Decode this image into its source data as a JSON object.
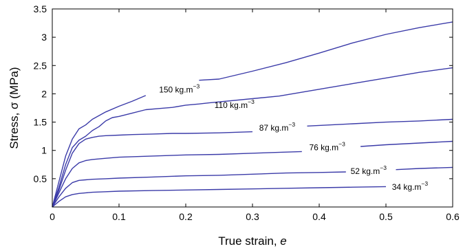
{
  "chart_data": {
    "type": "line",
    "xlabel": "True strain, ",
    "xlabel_var": "e",
    "ylabel": "Stress, σ (MPa)",
    "xlim": [
      0,
      0.6
    ],
    "ylim": [
      0,
      3.5
    ],
    "xticks": [
      "0",
      "0.1",
      "0.2",
      "0.3",
      "0.4",
      "0.5",
      "0.6"
    ],
    "yticks": [
      "0.5",
      "1",
      "1.5",
      "2",
      "2.5",
      "3",
      "3.5"
    ],
    "grid": false,
    "line_color": "#3a3aa8",
    "series": [
      {
        "name": "150 kg.m",
        "name_sup": "−3",
        "label_at": [
          0.16,
          2.07
        ],
        "gap": [
          0.148,
          0.215
        ],
        "x": [
          0,
          0.01,
          0.02,
          0.03,
          0.04,
          0.05,
          0.06,
          0.08,
          0.1,
          0.12,
          0.14,
          0.16,
          0.2,
          0.22,
          0.25,
          0.3,
          0.35,
          0.4,
          0.45,
          0.5,
          0.55,
          0.6
        ],
        "y": [
          0,
          0.45,
          0.9,
          1.2,
          1.38,
          1.45,
          1.55,
          1.68,
          1.78,
          1.87,
          1.97,
          2.06,
          2.2,
          2.24,
          2.26,
          2.4,
          2.55,
          2.72,
          2.9,
          3.05,
          3.17,
          3.27
        ]
      },
      {
        "name": "110 kg.m",
        "name_sup": "−3",
        "label_at": [
          0.243,
          1.8
        ],
        "gap": [
          0.237,
          0.34
        ],
        "x": [
          0,
          0.01,
          0.02,
          0.03,
          0.04,
          0.05,
          0.06,
          0.07,
          0.08,
          0.09,
          0.1,
          0.12,
          0.14,
          0.16,
          0.18,
          0.2,
          0.22,
          0.235,
          0.34,
          0.4,
          0.45,
          0.5,
          0.55,
          0.6
        ],
        "y": [
          0,
          0.35,
          0.75,
          1.05,
          1.18,
          1.25,
          1.35,
          1.42,
          1.52,
          1.58,
          1.6,
          1.66,
          1.72,
          1.74,
          1.76,
          1.8,
          1.82,
          1.84,
          1.96,
          2.08,
          2.18,
          2.28,
          2.38,
          2.46
        ]
      },
      {
        "name": "87 kg.m",
        "name_sup": "−3",
        "label_at": [
          0.31,
          1.4
        ],
        "gap": [
          0.3,
          0.382
        ],
        "x": [
          0,
          0.01,
          0.02,
          0.03,
          0.04,
          0.05,
          0.06,
          0.07,
          0.08,
          0.1,
          0.12,
          0.15,
          0.18,
          0.2,
          0.25,
          0.3,
          0.382,
          0.45,
          0.5,
          0.55,
          0.6
        ],
        "y": [
          0,
          0.3,
          0.65,
          0.95,
          1.12,
          1.2,
          1.23,
          1.25,
          1.26,
          1.27,
          1.28,
          1.29,
          1.3,
          1.3,
          1.31,
          1.33,
          1.43,
          1.47,
          1.5,
          1.52,
          1.55
        ]
      },
      {
        "name": "76 kg.m",
        "name_sup": "−3",
        "label_at": [
          0.385,
          1.05
        ],
        "gap": [
          0.374,
          0.462
        ],
        "x": [
          0,
          0.01,
          0.02,
          0.03,
          0.04,
          0.05,
          0.06,
          0.08,
          0.1,
          0.15,
          0.2,
          0.25,
          0.3,
          0.35,
          0.374,
          0.462,
          0.5,
          0.55,
          0.6
        ],
        "y": [
          0,
          0.25,
          0.5,
          0.68,
          0.78,
          0.82,
          0.84,
          0.86,
          0.88,
          0.9,
          0.92,
          0.93,
          0.95,
          0.97,
          0.98,
          1.07,
          1.1,
          1.13,
          1.16
        ]
      },
      {
        "name": "52 kg.m",
        "name_sup": "−3",
        "label_at": [
          0.447,
          0.63
        ],
        "gap": [
          0.44,
          0.515
        ],
        "x": [
          0,
          0.01,
          0.02,
          0.03,
          0.04,
          0.05,
          0.06,
          0.08,
          0.1,
          0.15,
          0.2,
          0.25,
          0.3,
          0.35,
          0.4,
          0.44,
          0.515,
          0.55,
          0.6
        ],
        "y": [
          0,
          0.18,
          0.33,
          0.43,
          0.47,
          0.48,
          0.49,
          0.5,
          0.51,
          0.53,
          0.55,
          0.56,
          0.58,
          0.6,
          0.61,
          0.62,
          0.66,
          0.68,
          0.7
        ]
      },
      {
        "name": "34 kg.m",
        "name_sup": "−3",
        "label_at": [
          0.509,
          0.35
        ],
        "gap": [
          0.5,
          0.6
        ],
        "x": [
          0,
          0.01,
          0.02,
          0.03,
          0.04,
          0.05,
          0.06,
          0.08,
          0.1,
          0.15,
          0.2,
          0.25,
          0.3,
          0.35,
          0.4,
          0.45,
          0.5,
          0.6
        ],
        "y": [
          0,
          0.1,
          0.18,
          0.22,
          0.24,
          0.25,
          0.26,
          0.27,
          0.28,
          0.29,
          0.3,
          0.31,
          0.32,
          0.33,
          0.34,
          0.35,
          0.36,
          0.37
        ]
      }
    ]
  }
}
